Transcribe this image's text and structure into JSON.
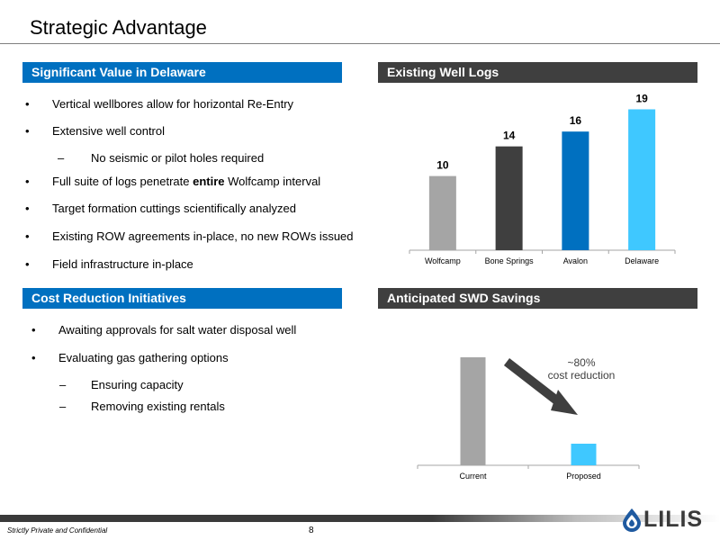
{
  "title": "Strategic Advantage",
  "sections": {
    "value": {
      "header": "Significant Value in Delaware",
      "bullets": [
        "Vertical wellbores allow for horizontal Re-Entry",
        "Extensive well control",
        "Full suite of logs penetrate ",
        "Target formation cuttings scientifically analyzed",
        "Existing ROW agreements in-place, no new ROWs issued",
        "Field infrastructure in-place"
      ],
      "sub_bullet": "No seismic or pilot holes required",
      "bold_word": "entire",
      "bullet_tail": " Wolfcamp interval"
    },
    "cost": {
      "header": "Cost Reduction Initiatives",
      "bullets": [
        "Awaiting approvals for salt water disposal well",
        "Evaluating gas gathering options"
      ],
      "sub_bullets": [
        "Ensuring capacity",
        "Removing existing rentals"
      ]
    },
    "logs": {
      "header": "Existing Well Logs"
    },
    "swd": {
      "header": "Anticipated SWD Savings",
      "annotation_line1": "~80%",
      "annotation_line2": "cost reduction"
    }
  },
  "chart_data": [
    {
      "type": "bar",
      "categories": [
        "Wolfcamp",
        "Bone Springs",
        "Avalon",
        "Delaware"
      ],
      "values": [
        10,
        14,
        16,
        19
      ],
      "colors": [
        "#a5a5a5",
        "#3f3f3f",
        "#0070c0",
        "#3fc8ff"
      ],
      "ylim": [
        0,
        21
      ]
    },
    {
      "type": "bar",
      "categories": [
        "Current",
        "Proposed"
      ],
      "values": [
        100,
        20
      ],
      "colors": [
        "#a5a5a5",
        "#3fc8ff"
      ],
      "ylim": [
        0,
        100
      ]
    }
  ],
  "footer": {
    "confidential": "Strictly Private and Confidential",
    "page": "8",
    "logo": "LILIS"
  }
}
